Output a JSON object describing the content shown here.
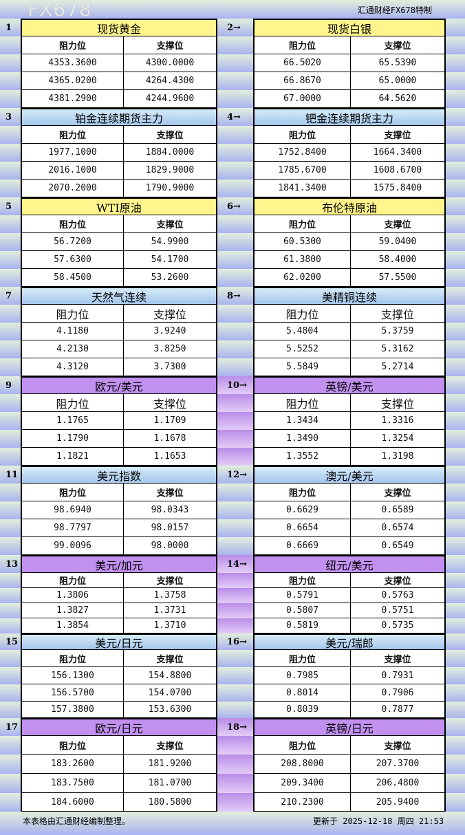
{
  "brand": "汇通财经FX678特制",
  "col_resistance": "阻力位",
  "col_support": "支撑位",
  "blocks": [
    {
      "style": "yellow",
      "left": {
        "num": "1",
        "title": "现货黄金",
        "rows": [
          [
            "4353.3600",
            "4300.0000"
          ],
          [
            "4365.0200",
            "4264.4300"
          ],
          [
            "4381.2900",
            "4244.9600"
          ]
        ]
      },
      "right": {
        "num": "2→",
        "title": "现货白银",
        "rows": [
          [
            "66.5020",
            "65.5390"
          ],
          [
            "66.8670",
            "65.0000"
          ],
          [
            "67.0000",
            "64.5620"
          ]
        ]
      }
    },
    {
      "style": "blue",
      "left": {
        "num": "3",
        "title": "铂金连续期货主力",
        "rows": [
          [
            "1977.1000",
            "1884.0000"
          ],
          [
            "2016.1000",
            "1829.9000"
          ],
          [
            "2070.2000",
            "1790.9000"
          ]
        ]
      },
      "right": {
        "num": "4→",
        "title": "钯金连续期货主力",
        "rows": [
          [
            "1752.8400",
            "1664.3400"
          ],
          [
            "1785.6700",
            "1608.6700"
          ],
          [
            "1841.3400",
            "1575.8400"
          ]
        ]
      }
    },
    {
      "style": "yellow",
      "left": {
        "num": "5",
        "title": "WTI原油",
        "rows": [
          [
            "56.7200",
            "54.9900"
          ],
          [
            "57.6300",
            "54.1700"
          ],
          [
            "58.4500",
            "53.2600"
          ]
        ]
      },
      "right": {
        "num": "6→",
        "title": "布伦特原油",
        "rows": [
          [
            "60.5300",
            "59.0400"
          ],
          [
            "61.3800",
            "58.4000"
          ],
          [
            "62.0200",
            "57.5500"
          ]
        ]
      }
    },
    {
      "style": "blue",
      "left": {
        "num": "7",
        "title": "天然气连续",
        "rows": [
          [
            "4.1180",
            "3.9240"
          ],
          [
            "4.2130",
            "3.8250"
          ],
          [
            "4.3120",
            "3.7300"
          ]
        ]
      },
      "right": {
        "num": "8→",
        "title": "美精铜连续",
        "rows": [
          [
            "5.4804",
            "5.3759"
          ],
          [
            "5.5252",
            "5.3162"
          ],
          [
            "5.5849",
            "5.2714"
          ]
        ]
      }
    },
    {
      "style": "purple",
      "left": {
        "num": "9",
        "title": "欧元/美元",
        "rows": [
          [
            "1.1765",
            "1.1709"
          ],
          [
            "1.1790",
            "1.1678"
          ],
          [
            "1.1821",
            "1.1653"
          ]
        ]
      },
      "right": {
        "num": "10→",
        "title": "英镑/美元",
        "rows": [
          [
            "1.3434",
            "1.3316"
          ],
          [
            "1.3490",
            "1.3254"
          ],
          [
            "1.3552",
            "1.3198"
          ]
        ]
      }
    },
    {
      "style": "blue",
      "left": {
        "num": "11",
        "title": "美元指数",
        "rows": [
          [
            "98.6940",
            "98.0343"
          ],
          [
            "98.7797",
            "98.0157"
          ],
          [
            "99.0096",
            "98.0000"
          ]
        ]
      },
      "right": {
        "num": "12→",
        "title": "澳元/美元",
        "rows": [
          [
            "0.6629",
            "0.6589"
          ],
          [
            "0.6654",
            "0.6574"
          ],
          [
            "0.6669",
            "0.6549"
          ]
        ]
      }
    },
    {
      "style": "purple",
      "left": {
        "num": "13",
        "title": "美元/加元",
        "rows": [
          [
            "1.3806",
            "1.3758"
          ],
          [
            "1.3827",
            "1.3731"
          ],
          [
            "1.3854",
            "1.3710"
          ]
        ]
      },
      "right": {
        "num": "14→",
        "title": "纽元/美元",
        "rows": [
          [
            "0.5791",
            "0.5763"
          ],
          [
            "0.5807",
            "0.5751"
          ],
          [
            "0.5819",
            "0.5735"
          ]
        ]
      }
    },
    {
      "style": "blue",
      "left": {
        "num": "15",
        "title": "美元/日元",
        "rows": [
          [
            "156.1300",
            "154.8800"
          ],
          [
            "156.5700",
            "154.0700"
          ],
          [
            "157.3800",
            "153.6300"
          ]
        ]
      },
      "right": {
        "num": "16→",
        "title": "美元/瑞郎",
        "rows": [
          [
            "0.7985",
            "0.7931"
          ],
          [
            "0.8014",
            "0.7906"
          ],
          [
            "0.8039",
            "0.7877"
          ]
        ]
      }
    },
    {
      "style": "purple",
      "left": {
        "num": "17",
        "title": "欧元/日元",
        "rows": [
          [
            "183.2600",
            "181.9200"
          ],
          [
            "183.7500",
            "181.0700"
          ],
          [
            "184.6000",
            "180.5800"
          ]
        ]
      },
      "right": {
        "num": "18→",
        "title": "英镑/日元",
        "rows": [
          [
            "208.8000",
            "207.3700"
          ],
          [
            "209.3400",
            "206.4800"
          ],
          [
            "210.2300",
            "205.9400"
          ]
        ]
      }
    }
  ],
  "footer": {
    "note": "本表格由汇通财经编制整理。",
    "updated": "更新于 2025-12-18 周四 21:53"
  },
  "watermark": "FX678"
}
